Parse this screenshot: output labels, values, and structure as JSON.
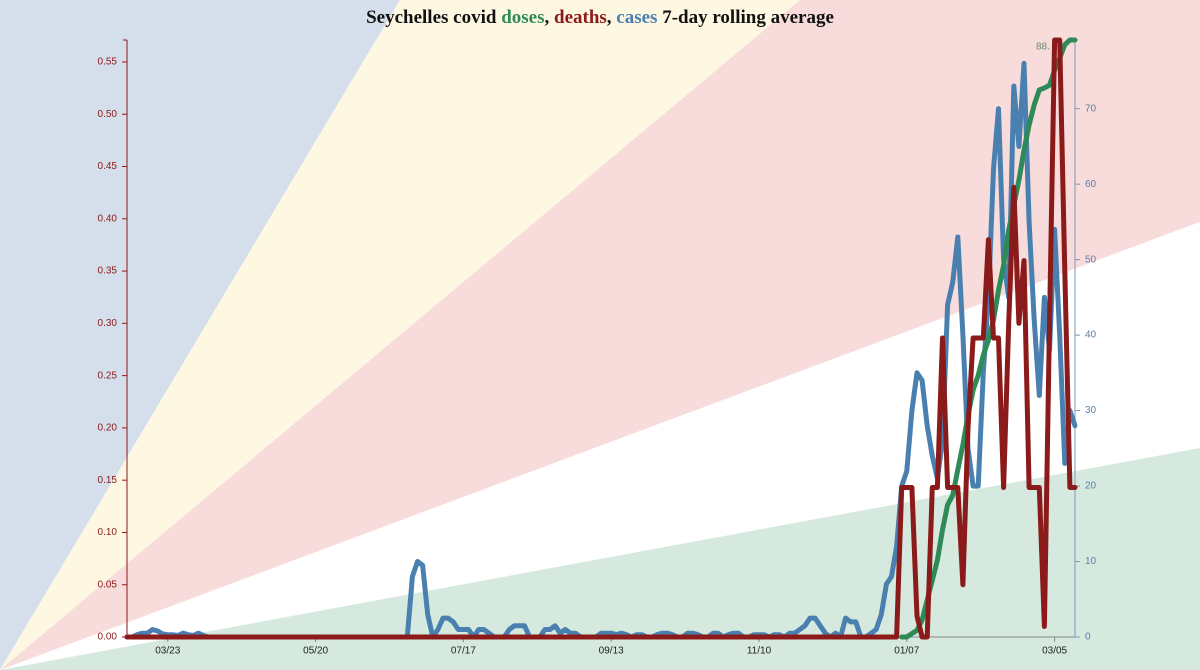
{
  "chart_data": {
    "type": "line",
    "title_parts": [
      "Seychelles covid ",
      ", ",
      ", ",
      " 7-day rolling average"
    ],
    "annotation": "88.",
    "categories": [
      "03/07",
      "03/09",
      "03/11",
      "03/13",
      "03/15",
      "03/17",
      "03/19",
      "03/21",
      "03/23",
      "03/25",
      "03/27",
      "03/29",
      "03/31",
      "04/02",
      "04/04",
      "04/06",
      "04/08",
      "04/10",
      "04/12",
      "04/14",
      "04/16",
      "04/18",
      "04/20",
      "04/22",
      "04/24",
      "04/26",
      "04/28",
      "04/30",
      "05/02",
      "05/04",
      "05/06",
      "05/08",
      "05/10",
      "05/12",
      "05/14",
      "05/16",
      "05/18",
      "05/20",
      "05/22",
      "05/24",
      "05/26",
      "05/28",
      "05/30",
      "06/01",
      "06/03",
      "06/05",
      "06/07",
      "06/09",
      "06/11",
      "06/13",
      "06/15",
      "06/17",
      "06/19",
      "06/21",
      "06/23",
      "06/25",
      "06/27",
      "06/29",
      "07/01",
      "07/03",
      "07/05",
      "07/07",
      "07/09",
      "07/11",
      "07/13",
      "07/15",
      "07/17",
      "07/19",
      "07/21",
      "07/23",
      "07/25",
      "07/27",
      "07/29",
      "07/31",
      "08/02",
      "08/04",
      "08/06",
      "08/08",
      "08/10",
      "08/12",
      "08/14",
      "08/16",
      "08/18",
      "08/20",
      "08/22",
      "08/24",
      "08/26",
      "08/28",
      "08/30",
      "09/01",
      "09/03",
      "09/05",
      "09/07",
      "09/09",
      "09/11",
      "09/13",
      "09/15",
      "09/17",
      "09/19",
      "09/21",
      "09/23",
      "09/25",
      "09/27",
      "09/29",
      "10/01",
      "10/03",
      "10/05",
      "10/07",
      "10/09",
      "10/11",
      "10/13",
      "10/15",
      "10/17",
      "10/19",
      "10/21",
      "10/23",
      "10/25",
      "10/27",
      "10/29",
      "10/31",
      "11/02",
      "11/04",
      "11/06",
      "11/08",
      "11/10",
      "11/12",
      "11/14",
      "11/16",
      "11/18",
      "11/20",
      "11/22",
      "11/24",
      "11/26",
      "11/28",
      "11/30",
      "12/02",
      "12/04",
      "12/06",
      "12/08",
      "12/10",
      "12/12",
      "12/14",
      "12/16",
      "12/18",
      "12/20",
      "12/22",
      "12/24",
      "12/26",
      "12/28",
      "12/30",
      "01/01",
      "01/03",
      "01/05",
      "01/07",
      "01/09",
      "01/11",
      "01/13",
      "01/15",
      "01/17",
      "01/19",
      "01/21",
      "01/23",
      "01/25",
      "01/27",
      "01/29",
      "01/31",
      "02/02",
      "02/04",
      "02/06",
      "02/08",
      "02/10",
      "02/12",
      "02/14",
      "02/16",
      "02/18",
      "02/20",
      "02/22",
      "02/24",
      "02/26",
      "02/28",
      "03/01",
      "03/03",
      "03/05",
      "03/07",
      "03/09",
      "03/11",
      "03/13"
    ],
    "xticks": [
      "03/23",
      "05/20",
      "07/17",
      "09/13",
      "11/10",
      "01/07",
      "03/05"
    ],
    "ylim": [
      0,
      0.571
    ],
    "yticks": [
      {
        "value": 0,
        "label": "0.00"
      },
      0.05,
      {
        "value": 0.1,
        "label": "0.10"
      },
      0.15,
      {
        "value": 0.2,
        "label": "0.20"
      },
      0.25,
      {
        "value": 0.3,
        "label": "0.30"
      },
      0.35,
      {
        "value": 0.4,
        "label": "0.40"
      },
      0.45,
      {
        "value": 0.5,
        "label": "0.50"
      },
      0.55
    ],
    "y2lim": [
      0,
      79.1
    ],
    "y2ticks": [
      0,
      10,
      20,
      30,
      40,
      50,
      60,
      70
    ],
    "y3lim": [
      0,
      88.5
    ],
    "series": [
      {
        "name": "cases",
        "color": "#4a80b0",
        "axis": "y2",
        "values": [
          0,
          0,
          0.3,
          0.5,
          0.5,
          1,
          0.8,
          0.4,
          0.3,
          0.3,
          0.2,
          0.5,
          0.3,
          0.2,
          0.5,
          0.2,
          0,
          0,
          0,
          0,
          0,
          0,
          0,
          0,
          0,
          0,
          0,
          0,
          0,
          0,
          0,
          0,
          0,
          0,
          0,
          0,
          0,
          0,
          0,
          0,
          0,
          0,
          0,
          0,
          0,
          0,
          0,
          0,
          0,
          0,
          0,
          0,
          0,
          0,
          0,
          0,
          8,
          10,
          9.5,
          3,
          0,
          1,
          2.5,
          2.5,
          2,
          1,
          1,
          1,
          0,
          1,
          1,
          0.5,
          0,
          0,
          0,
          1,
          1.5,
          1.5,
          1.5,
          0,
          0,
          0,
          1,
          1,
          1.5,
          0.5,
          1,
          0.5,
          0.5,
          0,
          0,
          0,
          0,
          0.5,
          0.5,
          0.5,
          0.3,
          0.5,
          0.3,
          0,
          0.3,
          0.3,
          0,
          0,
          0.3,
          0.5,
          0.5,
          0.3,
          0,
          0,
          0.5,
          0.5,
          0.3,
          0,
          0,
          0.5,
          0.5,
          0,
          0.3,
          0.5,
          0.5,
          0,
          0,
          0.3,
          0.3,
          0.3,
          0,
          0.3,
          0.3,
          0,
          0.5,
          0.5,
          1,
          1.5,
          2.5,
          2.5,
          1.5,
          0.5,
          0,
          0.5,
          0,
          2.5,
          2,
          2,
          0,
          0,
          0.5,
          1,
          3,
          7,
          8,
          12,
          20,
          22,
          30,
          35,
          34,
          28,
          24,
          21,
          26,
          44,
          47,
          53,
          40,
          25,
          20,
          20,
          35,
          45,
          62,
          70,
          50,
          45,
          73,
          65,
          76,
          55,
          42,
          32,
          45,
          38,
          54,
          40,
          23,
          30,
          28
        ]
      },
      {
        "name": "doses",
        "color": "#2e8b57",
        "axis": "y3",
        "values": [
          null,
          null,
          null,
          null,
          null,
          null,
          null,
          null,
          null,
          null,
          null,
          null,
          null,
          null,
          null,
          null,
          null,
          null,
          null,
          null,
          null,
          null,
          null,
          null,
          null,
          null,
          null,
          null,
          null,
          null,
          null,
          null,
          null,
          null,
          null,
          null,
          null,
          null,
          null,
          null,
          null,
          null,
          null,
          null,
          null,
          null,
          null,
          null,
          null,
          null,
          null,
          null,
          null,
          null,
          null,
          null,
          null,
          null,
          null,
          null,
          null,
          null,
          null,
          null,
          null,
          null,
          null,
          null,
          null,
          null,
          null,
          null,
          null,
          null,
          null,
          null,
          null,
          null,
          null,
          null,
          null,
          null,
          null,
          null,
          null,
          null,
          null,
          null,
          null,
          null,
          null,
          null,
          null,
          null,
          null,
          null,
          null,
          null,
          null,
          null,
          null,
          null,
          null,
          null,
          null,
          null,
          null,
          null,
          null,
          null,
          null,
          null,
          null,
          null,
          null,
          null,
          null,
          null,
          null,
          null,
          null,
          null,
          null,
          null,
          null,
          null,
          null,
          null,
          null,
          null,
          null,
          null,
          null,
          null,
          null,
          null,
          null,
          null,
          null,
          null,
          null,
          null,
          null,
          null,
          null,
          null,
          null,
          null,
          null,
          null,
          null,
          null,
          0,
          0,
          0.5,
          1,
          2.5,
          5.5,
          8.4,
          11.4,
          15.9,
          19.6,
          21,
          24.8,
          28.5,
          32.9,
          36.6,
          38.8,
          41.8,
          44,
          47,
          51.4,
          55.1,
          60.3,
          64,
          67.7,
          72.2,
          75.9,
          78.9,
          81.1,
          81.4,
          81.8,
          84,
          85.8,
          87.8,
          88.5,
          88.5
        ]
      },
      {
        "name": "deaths",
        "color": "#8b1a1a",
        "values": [
          0,
          0,
          0,
          0,
          0,
          0,
          0,
          0,
          0,
          0,
          0,
          0,
          0,
          0,
          0,
          0,
          0,
          0,
          0,
          0,
          0,
          0,
          0,
          0,
          0,
          0,
          0,
          0,
          0,
          0,
          0,
          0,
          0,
          0,
          0,
          0,
          0,
          0,
          0,
          0,
          0,
          0,
          0,
          0,
          0,
          0,
          0,
          0,
          0,
          0,
          0,
          0,
          0,
          0,
          0,
          0,
          0,
          0,
          0,
          0,
          0,
          0,
          0,
          0,
          0,
          0,
          0,
          0,
          0,
          0,
          0,
          0,
          0,
          0,
          0,
          0,
          0,
          0,
          0,
          0,
          0,
          0,
          0,
          0,
          0,
          0,
          0,
          0,
          0,
          0,
          0,
          0,
          0,
          0,
          0,
          0,
          0,
          0,
          0,
          0,
          0,
          0,
          0,
          0,
          0,
          0,
          0,
          0,
          0,
          0,
          0,
          0,
          0,
          0,
          0,
          0,
          0,
          0,
          0,
          0,
          0,
          0,
          0,
          0,
          0,
          0,
          0,
          0,
          0,
          0,
          0,
          0,
          0,
          0,
          0,
          0,
          0,
          0,
          0,
          0,
          0,
          0,
          0,
          0,
          0,
          0,
          0,
          0,
          0,
          0,
          0,
          0,
          0.143,
          0.143,
          0.143,
          0.02,
          0,
          0,
          0.143,
          0.143,
          0.286,
          0.143,
          0.143,
          0.143,
          0.05,
          0.2,
          0.286,
          0.286,
          0.286,
          0.38,
          0.286,
          0.286,
          0.143,
          0.3,
          0.43,
          0.3,
          0.36,
          0.143,
          0.143,
          0.143,
          0.01,
          0.3,
          0.571,
          0.571,
          0.35,
          0.143,
          0.143
        ]
      }
    ]
  }
}
